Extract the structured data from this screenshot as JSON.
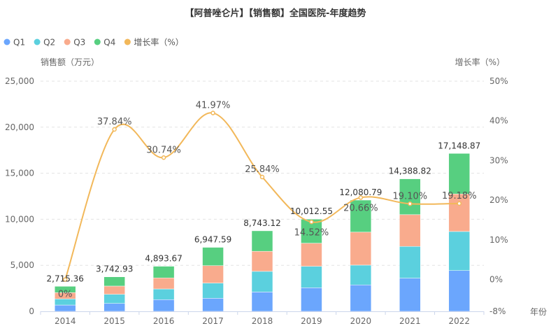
{
  "chart_data": {
    "type": "bar",
    "title": "【阿普唑仑片】【销售额】全国医院-年度趋势",
    "ylabel": "销售额（万元）",
    "y2label": "增长率（%）",
    "xlabel": "年份",
    "ylim": [
      0,
      25000
    ],
    "y_ticks": [
      "0",
      "5,000",
      "10,000",
      "15,000",
      "20,000",
      "25,000"
    ],
    "y2lim": [
      -8,
      50
    ],
    "y2_ticks": [
      "-8%",
      "0%",
      "10%",
      "20%",
      "30%",
      "40%",
      "50%"
    ],
    "grid": true,
    "legend_position": "top-left",
    "categories": [
      "2014",
      "2015",
      "2016",
      "2017",
      "2018",
      "2019",
      "2020",
      "2021",
      "2022"
    ],
    "series": [
      {
        "name": "Q1",
        "type": "bar",
        "stack": true,
        "color": "#6ba6fd",
        "values": [
          680,
          860,
          1270,
          1420,
          2100,
          2560,
          2870,
          3600,
          4430
        ]
      },
      {
        "name": "Q2",
        "type": "bar",
        "stack": true,
        "color": "#5bd0de",
        "values": [
          665,
          990,
          1160,
          1650,
          2240,
          2330,
          2150,
          3450,
          4240
        ]
      },
      {
        "name": "Q3",
        "type": "bar",
        "stack": true,
        "color": "#f9ab8d",
        "values": [
          685,
          890,
          1200,
          1890,
          2180,
          2510,
          3580,
          3450,
          4080
        ]
      },
      {
        "name": "Q4",
        "type": "bar",
        "stack": true,
        "color": "#57cf80",
        "values": [
          685,
          1003,
          1264,
          1988,
          2223,
          2613,
          3481,
          3889,
          4399
        ]
      },
      {
        "name": "增长率（%）",
        "type": "line",
        "axis": "right",
        "smooth": true,
        "color": "#f2b85a",
        "values": [
          0,
          37.84,
          30.74,
          41.97,
          25.84,
          14.52,
          20.66,
          19.1,
          19.18
        ],
        "labels": [
          "0%",
          "37.84%",
          "30.74%",
          "41.97%",
          "25.84%",
          "14.52%",
          "20.66%",
          "19.10%",
          "19.18%"
        ]
      }
    ],
    "totals": [
      2715.36,
      3742.93,
      4893.67,
      6947.59,
      8743.12,
      10012.55,
      12080.79,
      14388.82,
      17148.87
    ],
    "total_labels": [
      "2,715.36",
      "3,742.93",
      "4,893.67",
      "6,947.59",
      "8,743.12",
      "10,012.55",
      "12,080.79",
      "14,388.82",
      "17,148.87"
    ]
  }
}
